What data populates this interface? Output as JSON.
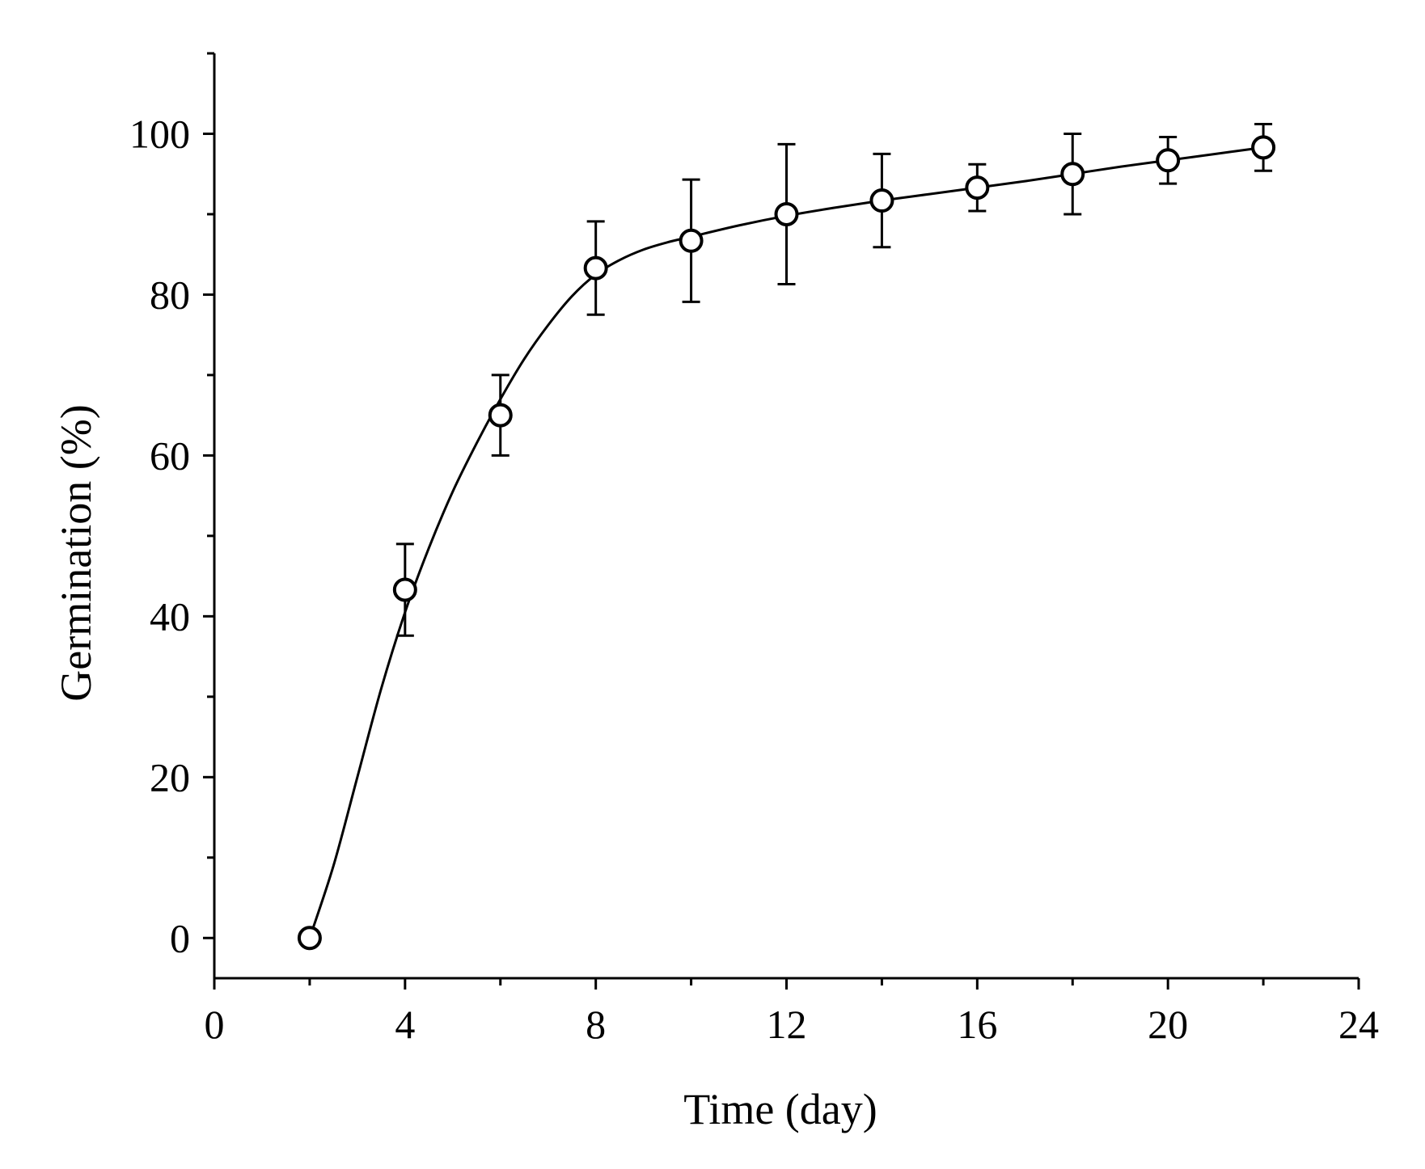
{
  "chart_data": {
    "type": "scatter",
    "title": "",
    "xlabel": "Time (day)",
    "ylabel": "Germination (%)",
    "xlim": [
      0,
      24
    ],
    "ylim": [
      -5,
      110
    ],
    "x_ticks": [
      0,
      4,
      8,
      12,
      16,
      20,
      24
    ],
    "x_minor_ticks": [
      2,
      6,
      10,
      14,
      18,
      22
    ],
    "y_ticks": [
      0,
      20,
      40,
      60,
      80,
      100
    ],
    "y_minor_ticks": [
      10,
      30,
      50,
      70,
      90,
      110
    ],
    "x_tick_labels": [
      "0",
      "4",
      "8",
      "12",
      "16",
      "20",
      "24"
    ],
    "y_tick_labels": [
      "0",
      "20",
      "40",
      "60",
      "80",
      "100"
    ],
    "grid": false,
    "legend": "none",
    "series": [
      {
        "name": "Germination",
        "marker": "open-circle",
        "fit_curve": "smooth sigmoid fit",
        "x": [
          2,
          4,
          6,
          8,
          10,
          12,
          14,
          16,
          18,
          20,
          22
        ],
        "y": [
          0,
          43.3,
          65,
          83.3,
          86.7,
          90,
          91.7,
          93.3,
          95,
          96.7,
          98.3
        ],
        "error": [
          0,
          5.7,
          5,
          5.8,
          7.6,
          8.7,
          5.8,
          2.9,
          5,
          2.9,
          2.9
        ]
      }
    ],
    "fit_curve_points": [
      [
        2,
        0
      ],
      [
        2.5,
        9
      ],
      [
        3,
        20
      ],
      [
        3.5,
        31
      ],
      [
        4,
        40.5
      ],
      [
        4.5,
        48.5
      ],
      [
        5,
        55.5
      ],
      [
        5.5,
        61.5
      ],
      [
        6,
        67
      ],
      [
        6.5,
        72
      ],
      [
        7,
        76.2
      ],
      [
        7.5,
        79.8
      ],
      [
        8,
        82.5
      ],
      [
        8.5,
        84.3
      ],
      [
        9,
        85.6
      ],
      [
        9.5,
        86.5
      ],
      [
        10,
        87.2
      ],
      [
        11,
        88.6
      ],
      [
        12,
        89.8
      ],
      [
        13,
        90.8
      ],
      [
        14,
        91.7
      ],
      [
        15,
        92.5
      ],
      [
        16,
        93.3
      ],
      [
        17,
        94.1
      ],
      [
        18,
        95
      ],
      [
        19,
        95.9
      ],
      [
        20,
        96.7
      ],
      [
        21,
        97.5
      ],
      [
        22,
        98.3
      ]
    ]
  }
}
